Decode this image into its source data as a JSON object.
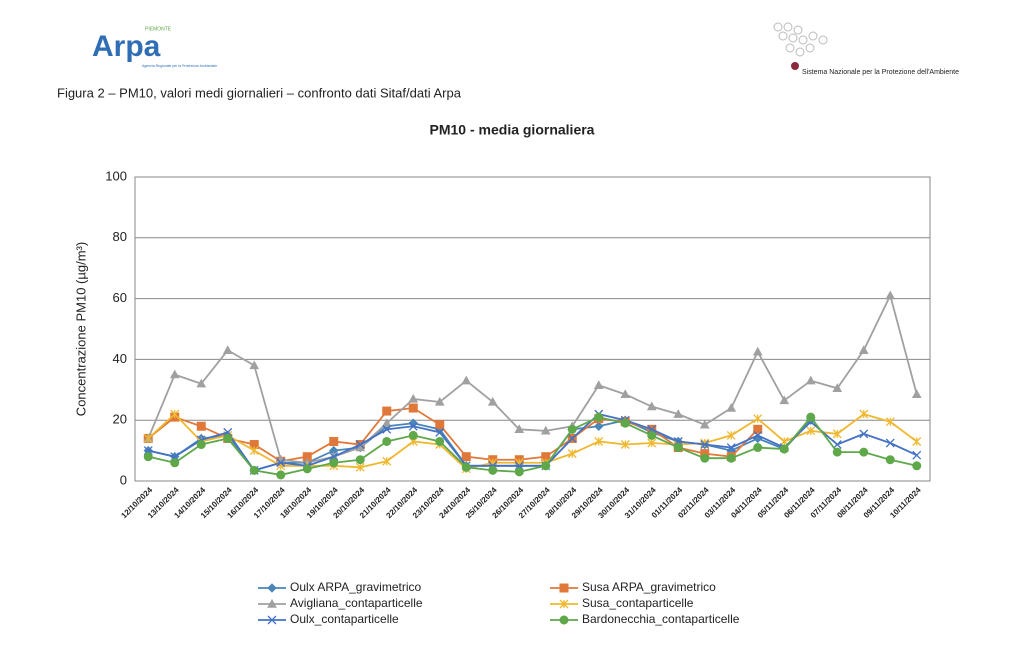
{
  "header": {
    "logo_left": "Arpa",
    "logo_left_region": "PIEMONTE",
    "logo_left_sub": "Agenzia Regionale per la Protezione Ambientale",
    "logo_right": "Sistema Nazionale per la Protezione dell'Ambiente"
  },
  "caption": "Figura 2 – PM10, valori medi giornalieri – confronto dati Sitaf/dati Arpa",
  "chart_data": {
    "type": "line",
    "title": "PM10 - media giornaliera",
    "y_label": "Concentrazione PM10 (µg/m³)",
    "categories": [
      "12/10/2024",
      "13/10/2024",
      "14/10/2024",
      "15/10/2024",
      "16/10/2024",
      "17/10/2024",
      "18/10/2024",
      "19/10/2024",
      "20/10/2024",
      "21/10/2024",
      "22/10/2024",
      "23/10/2024",
      "24/10/2024",
      "25/10/2024",
      "26/10/2024",
      "27/10/2024",
      "28/10/2024",
      "29/10/2024",
      "30/10/2024",
      "31/10/2024",
      "01/11/2024",
      "02/11/2024",
      "03/11/2024",
      "04/11/2024",
      "05/11/2024",
      "06/11/2024",
      "07/11/2024",
      "08/11/2024",
      "09/11/2024",
      "10/11/2024"
    ],
    "ylim": [
      0,
      100
    ],
    "yticks": [
      0,
      20,
      40,
      60,
      80,
      100
    ],
    "grid": true,
    "series": [
      {
        "name": "Oulx ARPA_gravimetrico",
        "color": "#4a86b8",
        "marker": "diamond",
        "values": [
          10,
          8,
          14,
          15,
          3.5,
          6,
          6,
          10,
          11,
          18,
          19,
          17,
          5,
          5,
          5,
          5,
          17,
          18,
          20,
          16,
          13,
          12,
          10,
          14,
          10.5,
          20,
          null,
          null,
          null,
          null
        ]
      },
      {
        "name": "Susa ARPA_gravimetrico",
        "color": "#e0783a",
        "marker": "square",
        "values": [
          14,
          21,
          18,
          14,
          12,
          6.5,
          8,
          13,
          12,
          23,
          24,
          18.5,
          8,
          7,
          7,
          8,
          14,
          20.5,
          19.5,
          17,
          11,
          9,
          8,
          17,
          null,
          null,
          null,
          null,
          null,
          null
        ]
      },
      {
        "name": "Avigliana_contaparticelle",
        "color": "#a0a0a0",
        "marker": "triangle",
        "values": [
          14,
          35,
          32,
          43,
          38,
          7,
          6,
          8,
          11,
          19,
          27,
          26,
          33,
          26,
          17,
          16.5,
          18,
          31.5,
          28.5,
          24.5,
          22,
          18.5,
          24,
          42.5,
          26.5,
          33,
          30.5,
          43,
          61,
          28.5
        ]
      },
      {
        "name": "Susa_contaparticelle",
        "color": "#f0b830",
        "marker": "star",
        "values": [
          14,
          22,
          13,
          15,
          10,
          5,
          5,
          5,
          4.5,
          6.5,
          13,
          12,
          4,
          6,
          6,
          6,
          9,
          13,
          12,
          12.5,
          12,
          12.5,
          15,
          20.5,
          13,
          16.5,
          15.5,
          22,
          19.5,
          13
        ]
      },
      {
        "name": "Oulx_contaparticelle",
        "color": "#4472c4",
        "marker": "x",
        "values": [
          10,
          8,
          13.5,
          16,
          3.5,
          6,
          5,
          8,
          12,
          17,
          18,
          16,
          5,
          5,
          5,
          5,
          14,
          22,
          20,
          17,
          13,
          12,
          11,
          15,
          11,
          19.5,
          12,
          15.5,
          12.5,
          8.5
        ]
      },
      {
        "name": "Bardonecchia_contaparticelle",
        "color": "#5fa84a",
        "marker": "circle",
        "values": [
          8,
          6,
          12,
          14,
          3.5,
          2,
          4,
          6,
          7,
          13,
          15,
          13,
          4.5,
          3.5,
          3,
          5,
          17,
          21,
          19,
          15,
          11,
          7.5,
          7.5,
          11,
          10.5,
          21,
          9.5,
          9.5,
          7,
          5
        ]
      }
    ]
  }
}
